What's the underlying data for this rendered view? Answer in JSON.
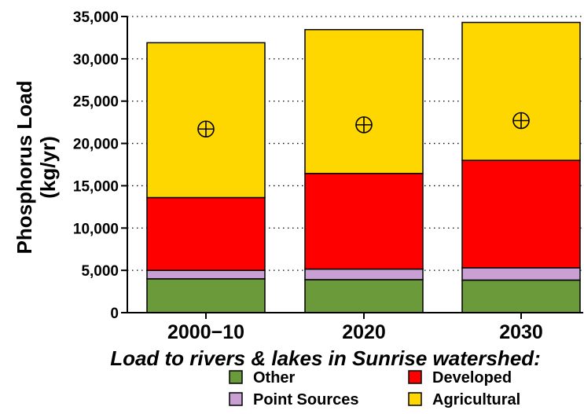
{
  "chart_data": {
    "type": "bar",
    "stacked": true,
    "categories": [
      "2000−10",
      "2020",
      "2030"
    ],
    "series": [
      {
        "name": "Other",
        "color": "#6a9a3a",
        "values": [
          4000,
          3900,
          3850
        ]
      },
      {
        "name": "Point Sources",
        "color": "#c9a0d4",
        "values": [
          1000,
          1250,
          1450
        ]
      },
      {
        "name": "Developed",
        "color": "#ff0000",
        "values": [
          8600,
          11300,
          12700
        ]
      },
      {
        "name": "Agricultural",
        "color": "#ffd700",
        "values": [
          18300,
          17000,
          16300
        ]
      }
    ],
    "markers": [
      21700,
      22200,
      22700
    ],
    "ylabel": [
      "Phosphorus Load",
      "(kg/yr)"
    ],
    "yticks": [
      0,
      5000,
      10000,
      15000,
      20000,
      25000,
      30000,
      35000
    ],
    "ytick_labels": [
      "0",
      "5,000",
      "10,000",
      "15,000",
      "20,000",
      "25,000",
      "30,000",
      "35,000"
    ],
    "ylim": [
      0,
      35000
    ],
    "grid": "horizontal-dotted",
    "caption": "Load to rivers & lakes in Sunrise watershed:",
    "legend": {
      "placement": "bottom",
      "columns": [
        [
          "Other",
          "Point Sources"
        ],
        [
          "Developed",
          "Agricultural"
        ]
      ]
    }
  }
}
